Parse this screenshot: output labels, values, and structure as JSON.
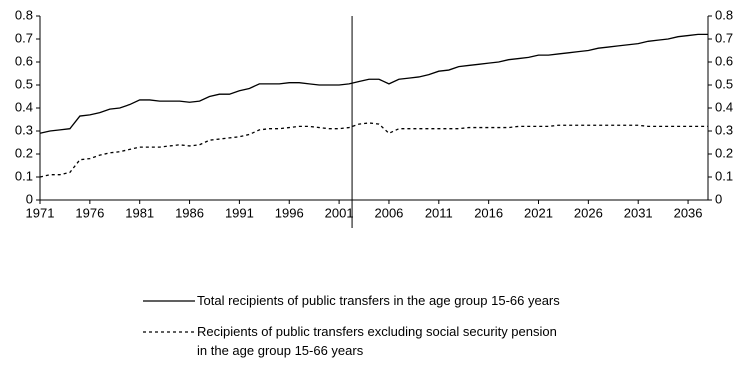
{
  "chart_data": {
    "type": "line",
    "x": [
      1971,
      1972,
      1973,
      1974,
      1975,
      1976,
      1977,
      1978,
      1979,
      1980,
      1981,
      1982,
      1983,
      1984,
      1985,
      1986,
      1987,
      1988,
      1989,
      1990,
      1991,
      1992,
      1993,
      1994,
      1995,
      1996,
      1997,
      1998,
      1999,
      2000,
      2001,
      2002,
      2003,
      2004,
      2005,
      2006,
      2007,
      2008,
      2009,
      2010,
      2011,
      2012,
      2013,
      2014,
      2015,
      2016,
      2017,
      2018,
      2019,
      2020,
      2021,
      2022,
      2023,
      2024,
      2025,
      2026,
      2027,
      2028,
      2029,
      2030,
      2031,
      2032,
      2033,
      2034,
      2035,
      2036,
      2037,
      2038
    ],
    "series": [
      {
        "name": "Total recipients of public transfers in the age group 15-66 years",
        "color": "#000000",
        "dash": "solid",
        "values": [
          0.29,
          0.3,
          0.305,
          0.31,
          0.365,
          0.37,
          0.38,
          0.395,
          0.4,
          0.415,
          0.435,
          0.435,
          0.43,
          0.43,
          0.43,
          0.425,
          0.43,
          0.45,
          0.46,
          0.46,
          0.475,
          0.485,
          0.505,
          0.505,
          0.505,
          0.51,
          0.51,
          0.505,
          0.5,
          0.5,
          0.5,
          0.505,
          0.515,
          0.525,
          0.525,
          0.505,
          0.525,
          0.53,
          0.535,
          0.545,
          0.56,
          0.565,
          0.58,
          0.585,
          0.59,
          0.595,
          0.6,
          0.61,
          0.615,
          0.62,
          0.63,
          0.63,
          0.635,
          0.64,
          0.645,
          0.65,
          0.66,
          0.665,
          0.67,
          0.675,
          0.68,
          0.69,
          0.695,
          0.7,
          0.71,
          0.715,
          0.72,
          0.72
        ]
      },
      {
        "name": "Recipients of public transfers excluding social security pension in the age group 15-66 years",
        "color": "#000000",
        "dash": "dashed",
        "values": [
          0.1,
          0.11,
          0.11,
          0.12,
          0.175,
          0.18,
          0.195,
          0.205,
          0.21,
          0.22,
          0.23,
          0.23,
          0.23,
          0.235,
          0.24,
          0.235,
          0.24,
          0.26,
          0.265,
          0.27,
          0.275,
          0.285,
          0.305,
          0.31,
          0.31,
          0.315,
          0.32,
          0.32,
          0.315,
          0.31,
          0.31,
          0.315,
          0.33,
          0.335,
          0.33,
          0.29,
          0.31,
          0.31,
          0.31,
          0.31,
          0.31,
          0.31,
          0.31,
          0.315,
          0.315,
          0.315,
          0.315,
          0.315,
          0.32,
          0.32,
          0.32,
          0.32,
          0.325,
          0.325,
          0.325,
          0.325,
          0.325,
          0.325,
          0.325,
          0.325,
          0.325,
          0.32,
          0.32,
          0.32,
          0.32,
          0.32,
          0.32,
          0.32
        ]
      }
    ],
    "xlim": [
      1971,
      2038
    ],
    "xticks": [
      1971,
      1976,
      1981,
      1986,
      1991,
      1996,
      2001,
      2006,
      2011,
      2016,
      2021,
      2026,
      2031,
      2036
    ],
    "ylim": [
      0,
      0.8
    ],
    "yticks": [
      0,
      0.1,
      0.2,
      0.3,
      0.4,
      0.5,
      0.6,
      0.7,
      0.8
    ],
    "y2lim": [
      0,
      0.8
    ],
    "y2ticks": [
      0,
      0.1,
      0.2,
      0.3,
      0.4,
      0.5,
      0.6,
      0.7,
      0.8
    ],
    "vertical_line_x": 2002.3,
    "grid": false
  }
}
